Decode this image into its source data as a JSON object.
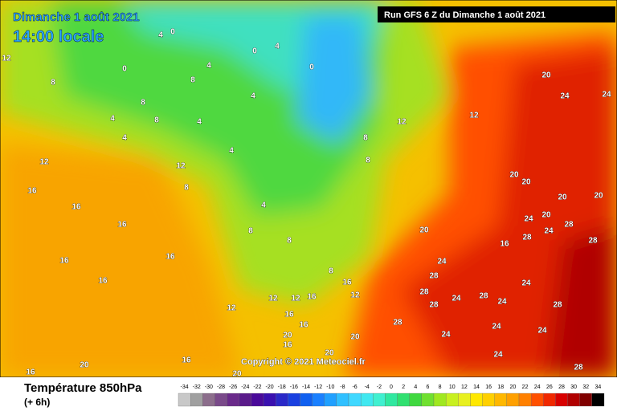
{
  "header": {
    "title": "Dimanche 1 août 2021",
    "subtitle": "14:00 locale",
    "run": "Run GFS 6 Z du Dimanche 1 août 2021"
  },
  "copyright": "Copyright © 2021 Meteociel.fr",
  "footer": {
    "title": "Température 850hPa",
    "subtitle": "(+ 6h)"
  },
  "legend": {
    "ticks": [
      -34,
      -32,
      -30,
      -28,
      -26,
      -24,
      -22,
      -20,
      -18,
      -16,
      -14,
      -12,
      -10,
      -8,
      -6,
      -4,
      -2,
      0,
      2,
      4,
      6,
      8,
      10,
      12,
      14,
      16,
      18,
      20,
      22,
      24,
      26,
      28,
      30,
      32,
      34
    ],
    "colors": [
      "#c8c8c8",
      "#a0a0a0",
      "#8c6e8c",
      "#7a4a8a",
      "#6a2a8a",
      "#5a1a8a",
      "#4a0a9a",
      "#3a10b0",
      "#2a28c8",
      "#1a40e0",
      "#1060f0",
      "#1a80ff",
      "#20a0ff",
      "#30c0ff",
      "#40d8ff",
      "#40e8f0",
      "#40f0d0",
      "#30e8a0",
      "#30e070",
      "#40d840",
      "#70e030",
      "#a0e820",
      "#c8f020",
      "#e8f020",
      "#ffe800",
      "#ffd000",
      "#ffb800",
      "#ffa000",
      "#ff8000",
      "#ff5000",
      "#f02800",
      "#d80000",
      "#b00000",
      "#800000",
      "#000000"
    ]
  },
  "map_labels": [
    12,
    8,
    4,
    4,
    8,
    8,
    4,
    4,
    0,
    4,
    0,
    4,
    8,
    0,
    4,
    0,
    4,
    8,
    8,
    12,
    12,
    20,
    24,
    24,
    12,
    16,
    16,
    16,
    16,
    16,
    16,
    12,
    8,
    4,
    8,
    8,
    8,
    16,
    12,
    12,
    12,
    16,
    12,
    16,
    16,
    20,
    16,
    20,
    20,
    16,
    20,
    16,
    20,
    20,
    24,
    28,
    28,
    28,
    24,
    28,
    24,
    28,
    28,
    24,
    24,
    24,
    24,
    28,
    20,
    20,
    20,
    24,
    20,
    28,
    28,
    24,
    28,
    16,
    20,
    24
  ]
}
